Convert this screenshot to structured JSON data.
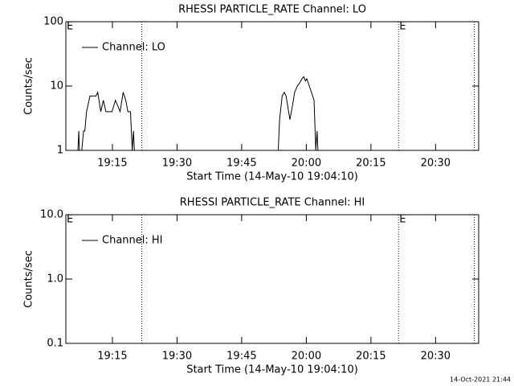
{
  "chart_data": [
    {
      "type": "line",
      "title": "RHESSI PARTICLE_RATE Channel: LO",
      "xlabel": "Start Time (14-May-10 19:04:10)",
      "ylabel": "Counts/sec",
      "log_y": true,
      "legend": "upper left",
      "x": [
        1146.8,
        1147.2,
        1147.5,
        1148.3,
        1148.6,
        1149.0,
        1149.8,
        1150.5,
        1151.2,
        1151.6,
        1152.3,
        1152.9,
        1153.5,
        1154.2,
        1154.9,
        1155.7,
        1156.2,
        1156.8,
        1157.5,
        1158.1,
        1158.6,
        1159.2,
        1159.6,
        1159.9,
        1160.3,
        1177.0,
        1193.3,
        1193.8,
        1194.4,
        1194.9,
        1195.3,
        1195.9,
        1196.2,
        1196.8,
        1197.3,
        1197.9,
        1198.4,
        1199.0,
        1199.4,
        1199.8,
        1200.1,
        1200.7,
        1201.2,
        1201.8,
        1202.2,
        1202.5,
        1202.9
      ],
      "series": [
        {
          "name": "Channel: LO",
          "color": "#000000",
          "values": [
            0.5,
            2,
            0.5,
            2,
            2,
            4,
            7,
            7,
            7,
            8,
            4,
            6,
            4,
            4,
            4,
            6,
            5,
            4,
            8,
            6,
            4,
            4,
            1,
            2,
            0.5,
            null,
            0.5,
            3,
            7,
            8,
            7,
            4,
            3,
            5,
            8,
            10,
            11,
            13,
            14,
            12,
            13,
            10,
            8,
            6,
            1,
            2,
            0.5
          ]
        }
      ],
      "xlim": [
        1144.2,
        1240
      ],
      "ylim": [
        1,
        100
      ],
      "yticks": [
        1,
        10,
        100
      ],
      "xticks": [
        {
          "value": 1155,
          "label": "19:15"
        },
        {
          "value": 1170,
          "label": "19:30"
        },
        {
          "value": 1185,
          "label": "19:45"
        },
        {
          "value": 1200,
          "label": "20:00"
        },
        {
          "value": 1215,
          "label": "20:15"
        },
        {
          "value": 1230,
          "label": "20:30"
        }
      ],
      "event_lines": [
        1161.8,
        1221.4,
        1239.0
      ],
      "event_labels": [
        {
          "x": 1144.2,
          "text": "E"
        },
        {
          "x": 1221.4,
          "text": "E"
        }
      ]
    },
    {
      "type": "line",
      "title": "RHESSI PARTICLE_RATE Channel: HI",
      "xlabel": "Start Time (14-May-10 19:04:10)",
      "ylabel": "Counts/sec",
      "log_y": true,
      "legend": "upper left",
      "x": [],
      "series": [
        {
          "name": "Channel: HI",
          "color": "#000000",
          "values": []
        }
      ],
      "xlim": [
        1144.2,
        1240
      ],
      "ylim": [
        0.1,
        10
      ],
      "yticks": [
        0.1,
        {
          "value": 1,
          "label": "1.0"
        },
        {
          "value": 10,
          "label": "10.0"
        }
      ],
      "xticks": [
        {
          "value": 1155,
          "label": "19:15"
        },
        {
          "value": 1170,
          "label": "19:30"
        },
        {
          "value": 1185,
          "label": "19:45"
        },
        {
          "value": 1200,
          "label": "20:00"
        },
        {
          "value": 1215,
          "label": "20:15"
        },
        {
          "value": 1230,
          "label": "20:30"
        }
      ],
      "event_lines": [
        1161.8,
        1221.4,
        1239.0
      ],
      "event_labels": [
        {
          "x": 1144.2,
          "text": "E"
        },
        {
          "x": 1221.4,
          "text": "E"
        }
      ]
    }
  ],
  "footer": "14-Oct-2021 21:44"
}
